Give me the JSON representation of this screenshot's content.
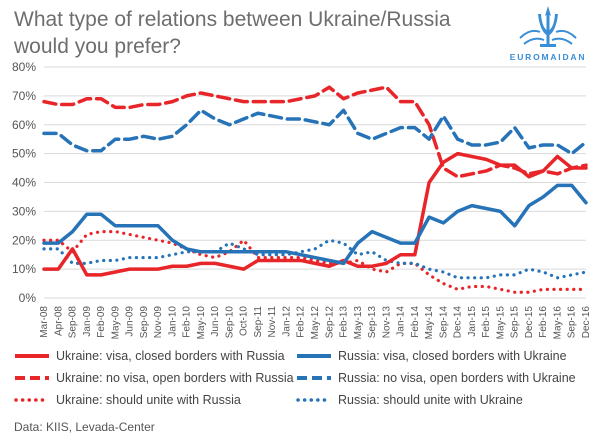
{
  "title": {
    "line1": "What type of relations between Ukraine/Russia",
    "line2": "would you prefer?"
  },
  "logo": {
    "text": "EUROMAIDAN",
    "icon": "trident-crown-icon",
    "color": "#3a8ed6"
  },
  "source": "Data: KIIS, Levada-Center",
  "colors": {
    "ukraine": "#e8262a",
    "russia": "#2673b8",
    "grid": "#d9d9d9"
  },
  "chart_data": {
    "type": "line",
    "title": "What type of relations between Ukraine/Russia would you prefer?",
    "xlabel": "",
    "ylabel": "",
    "ylim": [
      0,
      80
    ],
    "yticks": [
      "0%",
      "10%",
      "20%",
      "30%",
      "40%",
      "50%",
      "60%",
      "70%",
      "80%"
    ],
    "grid": true,
    "x_tick_labels": [
      "Mar-08",
      "Apr-08",
      "Sep-08",
      "Jan-09",
      "Feb-09",
      "May-09",
      "Jun-09",
      "Sep-09",
      "Nov-09",
      "Jan-10",
      "Feb-10",
      "May-10",
      "Jun-10",
      "Sep-10",
      "Oct-10",
      "Sep-11",
      "Nov-11",
      "Jan-12",
      "Feb-12",
      "May-12",
      "Sep-12",
      "Feb-13",
      "May-13",
      "Sep-13",
      "Nov-13",
      "Jan-14",
      "Feb-14",
      "May-14",
      "Sep-14",
      "Dec-14",
      "Jan-15",
      "Feb-15",
      "May-15",
      "Sep-15",
      "Dec-15",
      "Feb-16",
      "May-16",
      "Sep-16",
      "Dec-16"
    ],
    "series": [
      {
        "name": "Ukraine: visa, closed borders with Russia",
        "color": "#e8262a",
        "style": "solid",
        "values": [
          10,
          10,
          17,
          8,
          8,
          9,
          10,
          10,
          10,
          11,
          11,
          12,
          12,
          11,
          10,
          13,
          13,
          13,
          13,
          12,
          11,
          13,
          11,
          11,
          12,
          15,
          15,
          40,
          47,
          50,
          49,
          48,
          46,
          46,
          42,
          44,
          49,
          45,
          45
        ]
      },
      {
        "name": "Russia: visa, closed borders with Ukraine",
        "color": "#2673b8",
        "style": "solid",
        "values": [
          19,
          19,
          23,
          29,
          29,
          25,
          25,
          25,
          25,
          20,
          17,
          16,
          16,
          16,
          16,
          16,
          16,
          16,
          15,
          14,
          13,
          12,
          19,
          23,
          21,
          19,
          19,
          28,
          26,
          30,
          32,
          31,
          30,
          25,
          32,
          35,
          39,
          39,
          33
        ]
      },
      {
        "name": "Ukraine: no visa, open borders with Russia",
        "color": "#e8262a",
        "style": "dashed",
        "values": [
          68,
          67,
          67,
          69,
          69,
          66,
          66,
          67,
          67,
          68,
          70,
          71,
          70,
          69,
          68,
          68,
          68,
          68,
          69,
          70,
          73,
          69,
          71,
          72,
          73,
          68,
          68,
          60,
          45,
          42,
          43,
          44,
          46,
          45,
          43,
          44,
          43,
          45,
          46
        ]
      },
      {
        "name": "Russia: no visa, open borders with Ukraine",
        "color": "#2673b8",
        "style": "dashed",
        "values": [
          57,
          57,
          53,
          51,
          51,
          55,
          55,
          56,
          55,
          56,
          60,
          65,
          62,
          60,
          62,
          64,
          63,
          62,
          62,
          61,
          60,
          65,
          57,
          55,
          57,
          59,
          59,
          55,
          63,
          55,
          53,
          53,
          54,
          59,
          52,
          53,
          53,
          50,
          54
        ]
      },
      {
        "name": "Ukraine: should unite with Russia",
        "color": "#e8262a",
        "style": "dotted",
        "values": [
          20,
          20,
          16,
          22,
          23,
          23,
          22,
          21,
          20,
          19,
          17,
          15,
          14,
          16,
          20,
          14,
          14,
          14,
          14,
          13,
          12,
          12,
          13,
          10,
          9,
          12,
          12,
          8,
          5,
          3,
          4,
          4,
          3,
          2,
          2,
          3,
          3,
          3,
          3
        ]
      },
      {
        "name": "Russia: should unite with Ukraine",
        "color": "#2673b8",
        "style": "dotted",
        "values": [
          17,
          17,
          12,
          12,
          13,
          13,
          14,
          14,
          14,
          15,
          16,
          16,
          16,
          19,
          17,
          15,
          15,
          15,
          16,
          17,
          20,
          19,
          15,
          16,
          13,
          12,
          12,
          10,
          9,
          7,
          7,
          7,
          8,
          8,
          10,
          9,
          7,
          8,
          9
        ]
      }
    ],
    "legend_position": "bottom"
  }
}
